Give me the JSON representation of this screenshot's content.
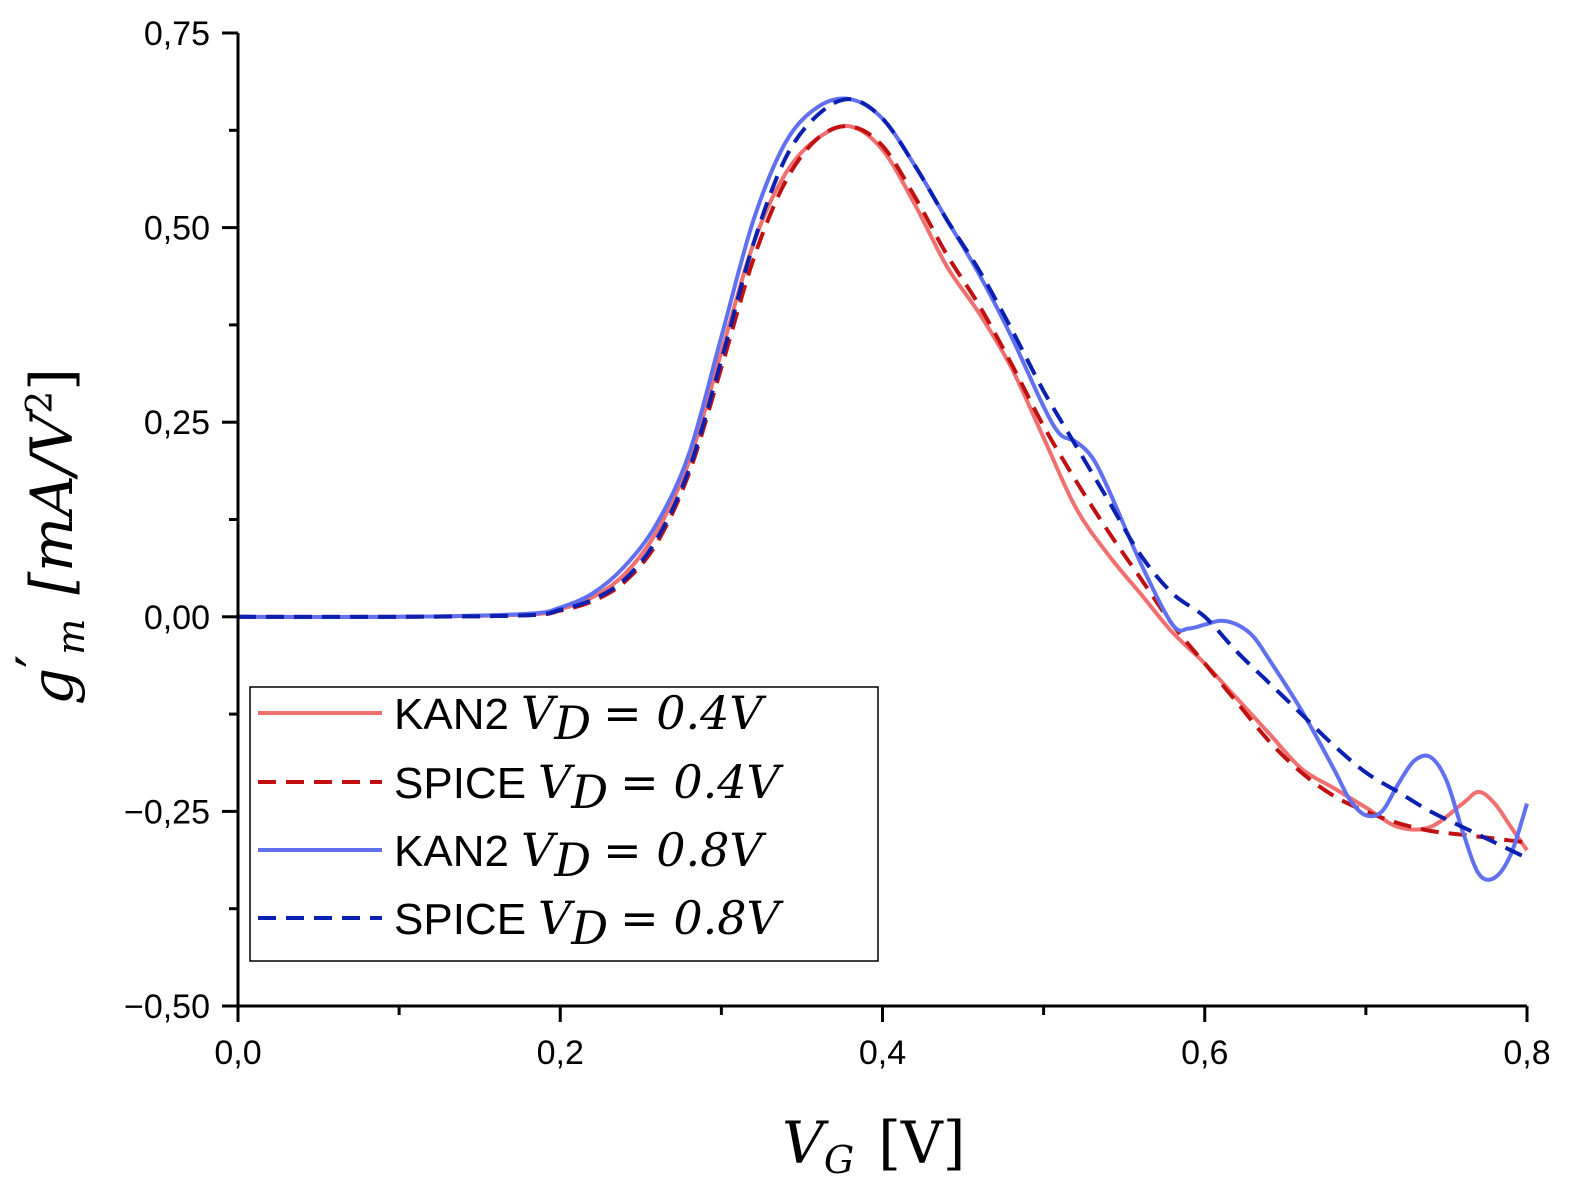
{
  "chart_data": {
    "type": "line",
    "xlabel": {
      "main": "V",
      "sub": "G",
      "unit": "[V]"
    },
    "ylabel": {
      "main": "g",
      "prime": "′",
      "sub": "m",
      "unit": "[mA/V",
      "unit_sup": "2",
      "unit_close": "]"
    },
    "xlim": [
      0.0,
      0.8
    ],
    "ylim": [
      -0.5,
      0.75
    ],
    "x_ticks": [
      0.0,
      0.2,
      0.4,
      0.6,
      0.8
    ],
    "x_tick_labels": [
      "0,0",
      "0,2",
      "0,4",
      "0,6",
      "0,8"
    ],
    "y_ticks": [
      -0.5,
      -0.25,
      0.0,
      0.25,
      0.5,
      0.75
    ],
    "y_tick_labels": [
      "−0,50",
      "−0,25",
      "0,00",
      "0,25",
      "0,50",
      "0,75"
    ],
    "grid": false,
    "legend_position": "bottom-left",
    "series": [
      {
        "name": "KAN2",
        "label_math": "V",
        "label_sub": "D",
        "label_eq": "= 0.4V",
        "color": "#f07070",
        "dash": "solid",
        "x": [
          0.0,
          0.1,
          0.18,
          0.2,
          0.22,
          0.24,
          0.26,
          0.28,
          0.3,
          0.32,
          0.34,
          0.36,
          0.38,
          0.4,
          0.42,
          0.44,
          0.46,
          0.48,
          0.5,
          0.52,
          0.54,
          0.56,
          0.58,
          0.6,
          0.62,
          0.64,
          0.66,
          0.68,
          0.7,
          0.72,
          0.74,
          0.76,
          0.77,
          0.78,
          0.79,
          0.8
        ],
        "y": [
          0.0,
          0.0,
          0.003,
          0.01,
          0.025,
          0.055,
          0.11,
          0.2,
          0.34,
          0.48,
          0.57,
          0.615,
          0.63,
          0.6,
          0.53,
          0.45,
          0.39,
          0.32,
          0.23,
          0.14,
          0.08,
          0.03,
          -0.02,
          -0.06,
          -0.105,
          -0.15,
          -0.195,
          -0.22,
          -0.245,
          -0.27,
          -0.27,
          -0.24,
          -0.225,
          -0.24,
          -0.27,
          -0.3
        ]
      },
      {
        "name": "SPICE",
        "label_math": "V",
        "label_sub": "D",
        "label_eq": "= 0.4V",
        "color": "#c01010",
        "dash": "dashed",
        "x": [
          0.0,
          0.1,
          0.18,
          0.2,
          0.22,
          0.24,
          0.26,
          0.28,
          0.3,
          0.32,
          0.34,
          0.36,
          0.38,
          0.4,
          0.42,
          0.44,
          0.46,
          0.48,
          0.5,
          0.52,
          0.54,
          0.56,
          0.58,
          0.6,
          0.62,
          0.64,
          0.66,
          0.68,
          0.7,
          0.72,
          0.74,
          0.76,
          0.78,
          0.8
        ],
        "y": [
          0.0,
          0.0,
          0.002,
          0.008,
          0.02,
          0.045,
          0.095,
          0.185,
          0.32,
          0.46,
          0.56,
          0.615,
          0.63,
          0.605,
          0.54,
          0.465,
          0.4,
          0.325,
          0.245,
          0.175,
          0.11,
          0.05,
          -0.01,
          -0.06,
          -0.11,
          -0.16,
          -0.2,
          -0.23,
          -0.25,
          -0.265,
          -0.275,
          -0.28,
          -0.285,
          -0.29
        ]
      },
      {
        "name": "KAN2",
        "label_math": "V",
        "label_sub": "D",
        "label_eq": "= 0.8V",
        "color": "#6070ee",
        "dash": "solid",
        "x": [
          0.0,
          0.1,
          0.18,
          0.2,
          0.22,
          0.24,
          0.26,
          0.28,
          0.3,
          0.32,
          0.34,
          0.36,
          0.38,
          0.4,
          0.42,
          0.44,
          0.46,
          0.48,
          0.5,
          0.51,
          0.52,
          0.53,
          0.54,
          0.56,
          0.58,
          0.59,
          0.6,
          0.61,
          0.62,
          0.63,
          0.64,
          0.66,
          0.68,
          0.69,
          0.7,
          0.71,
          0.72,
          0.73,
          0.74,
          0.75,
          0.76,
          0.77,
          0.78,
          0.79,
          0.8
        ],
        "y": [
          0.0,
          0.0,
          0.004,
          0.012,
          0.03,
          0.065,
          0.12,
          0.21,
          0.36,
          0.51,
          0.61,
          0.655,
          0.665,
          0.64,
          0.58,
          0.51,
          0.44,
          0.36,
          0.27,
          0.235,
          0.225,
          0.205,
          0.165,
          0.07,
          -0.01,
          -0.015,
          -0.01,
          -0.005,
          -0.01,
          -0.025,
          -0.055,
          -0.12,
          -0.195,
          -0.235,
          -0.255,
          -0.25,
          -0.215,
          -0.185,
          -0.18,
          -0.21,
          -0.275,
          -0.33,
          -0.335,
          -0.305,
          -0.24
        ]
      },
      {
        "name": "SPICE",
        "label_math": "V",
        "label_sub": "D",
        "label_eq": "= 0.8V",
        "color": "#0a20b0",
        "dash": "dashed",
        "x": [
          0.0,
          0.1,
          0.18,
          0.2,
          0.22,
          0.24,
          0.26,
          0.28,
          0.3,
          0.32,
          0.34,
          0.36,
          0.38,
          0.4,
          0.42,
          0.44,
          0.46,
          0.48,
          0.5,
          0.52,
          0.54,
          0.56,
          0.58,
          0.6,
          0.62,
          0.64,
          0.66,
          0.68,
          0.7,
          0.72,
          0.74,
          0.76,
          0.78,
          0.8
        ],
        "y": [
          0.0,
          0.0,
          0.002,
          0.009,
          0.022,
          0.048,
          0.1,
          0.19,
          0.33,
          0.48,
          0.59,
          0.645,
          0.665,
          0.64,
          0.58,
          0.51,
          0.445,
          0.37,
          0.29,
          0.22,
          0.15,
          0.08,
          0.03,
          0.0,
          -0.045,
          -0.085,
          -0.125,
          -0.165,
          -0.2,
          -0.225,
          -0.25,
          -0.27,
          -0.29,
          -0.31
        ]
      }
    ]
  }
}
